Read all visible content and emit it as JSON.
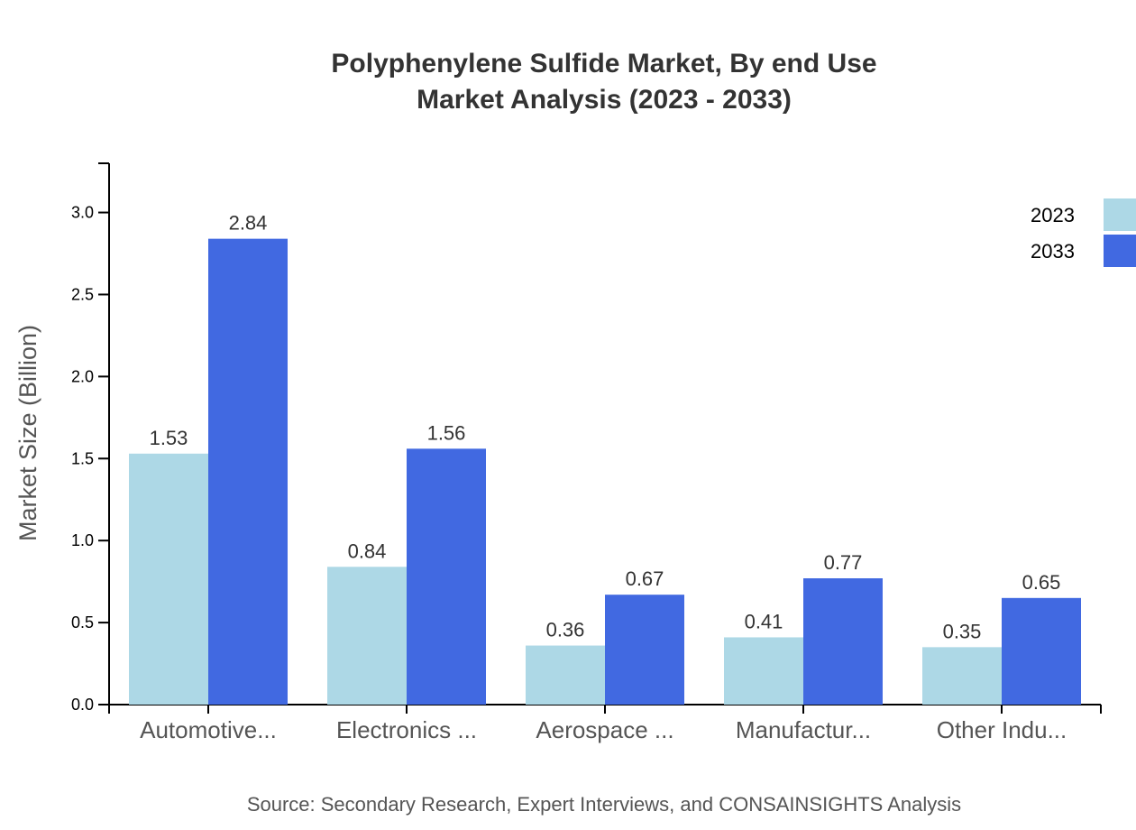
{
  "chart_data": {
    "type": "bar",
    "title": [
      "Polyphenylene Sulfide Market, By end Use",
      "Market Analysis (2023 - 2033)"
    ],
    "ylabel": "Market Size (Billion)",
    "xlabel": "",
    "ylim": [
      0,
      3.3
    ],
    "yticks": [
      "0.0",
      "0.5",
      "1.0",
      "1.5",
      "2.0",
      "2.5",
      "3.0"
    ],
    "categories": [
      "Automotive...",
      "Electronics ...",
      "Aerospace ...",
      "Manufactur...",
      "Other Indu..."
    ],
    "series": [
      {
        "name": "2023",
        "color": "#add8e6",
        "values": [
          1.53,
          0.84,
          0.36,
          0.41,
          0.35
        ]
      },
      {
        "name": "2033",
        "color": "#4169e1",
        "values": [
          2.84,
          1.56,
          0.67,
          0.77,
          0.65
        ]
      }
    ],
    "legend": {
      "position": "top-right"
    },
    "grid": false,
    "source": "Source: Secondary Research, Expert Interviews, and CONSAINSIGHTS Analysis"
  }
}
